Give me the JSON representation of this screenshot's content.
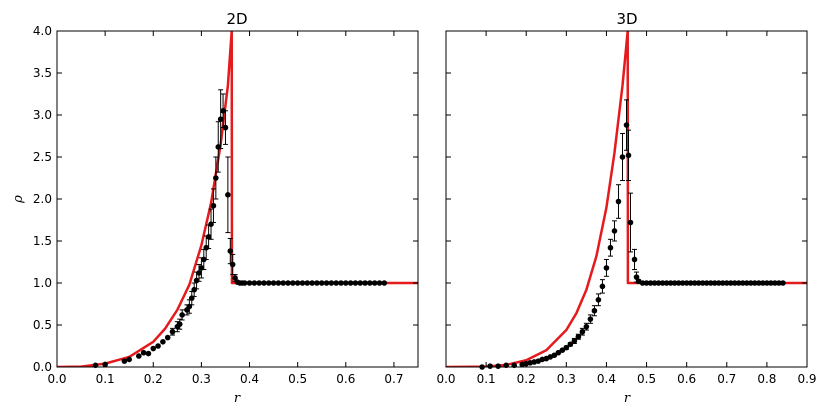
{
  "chart_data": [
    {
      "type": "scatter",
      "title": "2D",
      "xlabel": "r",
      "ylabel": "ρ",
      "xlim": [
        0.0,
        0.75
      ],
      "ylim": [
        0.0,
        4.0
      ],
      "xticks": [
        "0.0",
        "0.1",
        "0.2",
        "0.3",
        "0.4",
        "0.5",
        "0.6",
        "0.7"
      ],
      "xtick_values": [
        0.0,
        0.1,
        0.2,
        0.3,
        0.4,
        0.5,
        0.6,
        0.7
      ],
      "yticks": [
        "0.0",
        "0.5",
        "1.0",
        "1.5",
        "2.0",
        "2.5",
        "3.0",
        "3.5",
        "4.0"
      ],
      "ytick_values": [
        0.0,
        0.5,
        1.0,
        1.5,
        2.0,
        2.5,
        3.0,
        3.5,
        4.0
      ],
      "grid": false,
      "curve": {
        "color": "#e41a1c",
        "x": [
          0.0,
          0.05,
          0.1,
          0.15,
          0.2,
          0.225,
          0.25,
          0.275,
          0.3,
          0.32,
          0.34,
          0.355,
          0.363,
          0.3635,
          0.4,
          0.5,
          0.6,
          0.7,
          0.75
        ],
        "y": [
          0.0,
          0.004,
          0.04,
          0.12,
          0.3,
          0.46,
          0.68,
          0.98,
          1.45,
          1.95,
          2.65,
          3.35,
          4.0,
          1.0,
          1.0,
          1.0,
          1.0,
          1.0,
          1.0
        ]
      },
      "points": {
        "x": [
          0.08,
          0.1,
          0.14,
          0.15,
          0.17,
          0.18,
          0.19,
          0.2,
          0.21,
          0.22,
          0.23,
          0.24,
          0.25,
          0.255,
          0.26,
          0.27,
          0.275,
          0.28,
          0.285,
          0.29,
          0.295,
          0.3,
          0.305,
          0.31,
          0.315,
          0.32,
          0.325,
          0.33,
          0.335,
          0.34,
          0.345,
          0.35,
          0.355,
          0.36,
          0.365,
          0.37,
          0.375,
          0.38,
          0.385,
          0.39,
          0.4,
          0.41,
          0.42,
          0.43,
          0.44,
          0.45,
          0.46,
          0.47,
          0.48,
          0.49,
          0.5,
          0.51,
          0.52,
          0.53,
          0.54,
          0.55,
          0.56,
          0.57,
          0.58,
          0.59,
          0.6,
          0.61,
          0.62,
          0.63,
          0.64,
          0.65,
          0.66,
          0.67,
          0.68
        ],
        "y": [
          0.02,
          0.03,
          0.07,
          0.09,
          0.13,
          0.17,
          0.16,
          0.22,
          0.25,
          0.3,
          0.35,
          0.42,
          0.48,
          0.51,
          0.62,
          0.68,
          0.72,
          0.82,
          0.92,
          1.03,
          1.12,
          1.18,
          1.28,
          1.42,
          1.55,
          1.7,
          1.92,
          2.25,
          2.62,
          2.95,
          3.05,
          2.85,
          2.05,
          1.38,
          1.22,
          1.06,
          1.01,
          1.0,
          1.0,
          1.0,
          1.0,
          1.0,
          1.0,
          1.0,
          1.0,
          1.0,
          1.0,
          1.0,
          1.0,
          1.0,
          1.0,
          1.0,
          1.0,
          1.0,
          1.0,
          1.0,
          1.0,
          1.0,
          1.0,
          1.0,
          1.0,
          1.0,
          1.0,
          1.0,
          1.0,
          1.0,
          1.0,
          1.0,
          1.0
        ],
        "err": [
          0.0,
          0.0,
          0.0,
          0.0,
          0.0,
          0.0,
          0.0,
          0.0,
          0.0,
          0.0,
          0.0,
          0.04,
          0.06,
          0.06,
          0.06,
          0.06,
          0.08,
          0.08,
          0.08,
          0.1,
          0.1,
          0.12,
          0.12,
          0.14,
          0.14,
          0.18,
          0.2,
          0.25,
          0.3,
          0.35,
          0.2,
          0.2,
          0.45,
          0.15,
          0.12,
          0.04,
          0.0,
          0.0,
          0.0,
          0.0,
          0.0,
          0.0,
          0.0,
          0.0,
          0.0,
          0.0,
          0.0,
          0.0,
          0.0,
          0.0,
          0.0,
          0.0,
          0.0,
          0.0,
          0.0,
          0.0,
          0.0,
          0.0,
          0.0,
          0.0,
          0.0,
          0.0,
          0.0,
          0.0,
          0.0,
          0.0,
          0.0,
          0.0,
          0.0
        ]
      }
    },
    {
      "type": "scatter",
      "title": "3D",
      "xlabel": "r",
      "ylabel": "",
      "xlim": [
        0.0,
        0.9
      ],
      "ylim": [
        0.0,
        4.0
      ],
      "xticks": [
        "0.0",
        "0.1",
        "0.2",
        "0.3",
        "0.4",
        "0.5",
        "0.6",
        "0.7",
        "0.8",
        "0.9"
      ],
      "xtick_values": [
        0.0,
        0.1,
        0.2,
        0.3,
        0.4,
        0.5,
        0.6,
        0.7,
        0.8,
        0.9
      ],
      "yticks": [],
      "ytick_values": [
        0.0,
        0.5,
        1.0,
        1.5,
        2.0,
        2.5,
        3.0,
        3.5,
        4.0
      ],
      "grid": false,
      "curve": {
        "color": "#e41a1c",
        "x": [
          0.0,
          0.1,
          0.15,
          0.2,
          0.25,
          0.3,
          0.325,
          0.35,
          0.375,
          0.4,
          0.42,
          0.44,
          0.453,
          0.4535,
          0.5,
          0.6,
          0.7,
          0.8,
          0.9
        ],
        "y": [
          0.0,
          0.005,
          0.025,
          0.08,
          0.2,
          0.44,
          0.64,
          0.92,
          1.32,
          1.9,
          2.55,
          3.35,
          4.0,
          1.0,
          1.0,
          1.0,
          1.0,
          1.0,
          1.0
        ]
      },
      "points": {
        "x": [
          0.09,
          0.11,
          0.13,
          0.15,
          0.17,
          0.19,
          0.2,
          0.21,
          0.22,
          0.23,
          0.24,
          0.25,
          0.26,
          0.27,
          0.28,
          0.29,
          0.3,
          0.31,
          0.32,
          0.33,
          0.34,
          0.35,
          0.36,
          0.37,
          0.38,
          0.39,
          0.4,
          0.41,
          0.42,
          0.43,
          0.44,
          0.45,
          0.455,
          0.46,
          0.47,
          0.475,
          0.48,
          0.49,
          0.5,
          0.51,
          0.52,
          0.53,
          0.54,
          0.55,
          0.56,
          0.57,
          0.58,
          0.59,
          0.6,
          0.61,
          0.62,
          0.63,
          0.64,
          0.65,
          0.66,
          0.67,
          0.68,
          0.69,
          0.7,
          0.71,
          0.72,
          0.73,
          0.74,
          0.75,
          0.76,
          0.77,
          0.78,
          0.79,
          0.8,
          0.81,
          0.82,
          0.83,
          0.84
        ],
        "y": [
          0.0,
          0.01,
          0.01,
          0.02,
          0.02,
          0.03,
          0.04,
          0.05,
          0.06,
          0.07,
          0.09,
          0.1,
          0.12,
          0.14,
          0.17,
          0.2,
          0.23,
          0.27,
          0.31,
          0.36,
          0.42,
          0.48,
          0.57,
          0.67,
          0.8,
          0.96,
          1.18,
          1.42,
          1.62,
          1.97,
          2.5,
          2.88,
          2.52,
          1.72,
          1.28,
          1.07,
          1.02,
          1.0,
          1.0,
          1.0,
          1.0,
          1.0,
          1.0,
          1.0,
          1.0,
          1.0,
          1.0,
          1.0,
          1.0,
          1.0,
          1.0,
          1.0,
          1.0,
          1.0,
          1.0,
          1.0,
          1.0,
          1.0,
          1.0,
          1.0,
          1.0,
          1.0,
          1.0,
          1.0,
          1.0,
          1.0,
          1.0,
          1.0,
          1.0,
          1.0,
          1.0,
          1.0,
          1.0
        ],
        "err": [
          0.0,
          0.0,
          0.0,
          0.0,
          0.0,
          0.0,
          0.0,
          0.0,
          0.0,
          0.0,
          0.0,
          0.0,
          0.0,
          0.0,
          0.0,
          0.0,
          0.02,
          0.02,
          0.03,
          0.03,
          0.04,
          0.04,
          0.05,
          0.06,
          0.07,
          0.08,
          0.1,
          0.1,
          0.12,
          0.2,
          0.28,
          0.3,
          0.3,
          0.35,
          0.12,
          0.06,
          0.02,
          0.0,
          0.0,
          0.0,
          0.0,
          0.0,
          0.0,
          0.0,
          0.0,
          0.0,
          0.0,
          0.0,
          0.0,
          0.0,
          0.0,
          0.0,
          0.0,
          0.0,
          0.0,
          0.0,
          0.0,
          0.0,
          0.0,
          0.0,
          0.0,
          0.0,
          0.0,
          0.0,
          0.0,
          0.0,
          0.0,
          0.0,
          0.0,
          0.0,
          0.0,
          0.0,
          0.0
        ]
      }
    }
  ]
}
